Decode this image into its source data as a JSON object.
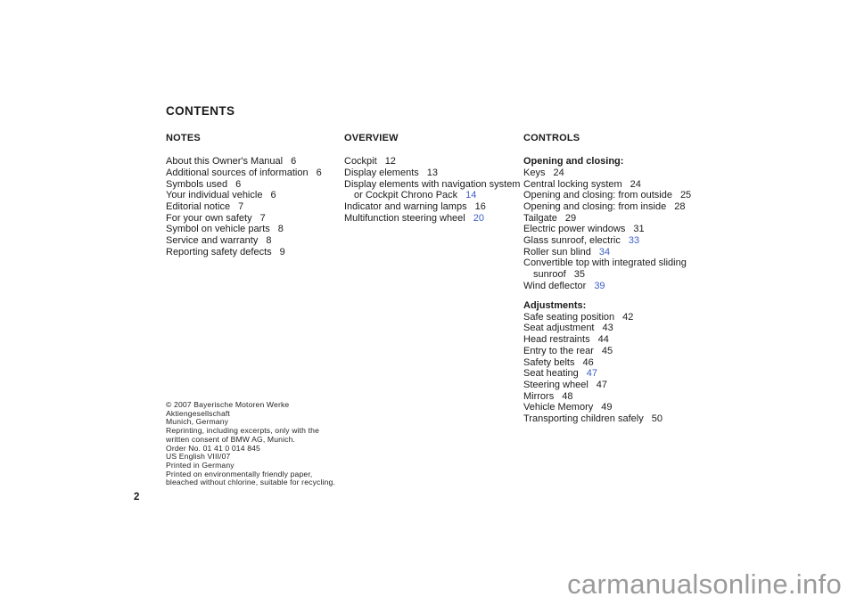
{
  "page": {
    "title": "CONTENTS",
    "page_number": "2",
    "watermark": "carmanualsonline.info"
  },
  "colors": {
    "text": "#1b1b1b",
    "link_blue": "#3e5fc9",
    "watermark_gray": "#9b9b9b"
  },
  "columns": [
    {
      "header": "NOTES",
      "lines": [
        {
          "text": "About this Owner's Manual",
          "page": "6"
        },
        {
          "text": "Additional sources of information",
          "page": "6"
        },
        {
          "text": "Symbols used",
          "page": "6"
        },
        {
          "text": "Your individual vehicle",
          "page": "6"
        },
        {
          "text": "Editorial notice",
          "page": "7"
        },
        {
          "text": "For your own safety",
          "page": "7"
        },
        {
          "text": "Symbol on vehicle parts",
          "page": "8"
        },
        {
          "text": "Service and warranty",
          "page": "8"
        },
        {
          "text": "Reporting safety defects",
          "page": "9"
        }
      ]
    },
    {
      "header": "OVERVIEW",
      "lines": [
        {
          "text": "Cockpit",
          "page": "12"
        },
        {
          "text": "Display elements",
          "page": "13"
        },
        {
          "text": "Display elements with navigation system"
        },
        {
          "text": "or Cockpit Chrono Pack",
          "page": "14",
          "link": true,
          "indent": true
        },
        {
          "text": "Indicator and warning lamps",
          "page": "16"
        },
        {
          "text": "Multifunction steering wheel",
          "page": "20",
          "link": true
        }
      ]
    },
    {
      "header": "CONTROLS",
      "lines": [
        {
          "text": "Opening and closing:",
          "bold": true
        },
        {
          "text": "Keys",
          "page": "24"
        },
        {
          "text": "Central locking system",
          "page": "24"
        },
        {
          "text": "Opening and closing: from outside",
          "page": "25"
        },
        {
          "text": "Opening and closing: from inside",
          "page": "28"
        },
        {
          "text": "Tailgate",
          "page": "29"
        },
        {
          "text": "Electric power windows",
          "page": "31"
        },
        {
          "text": "Glass sunroof, electric",
          "page": "33",
          "link": true
        },
        {
          "text": "Roller sun blind",
          "page": "34",
          "link": true
        },
        {
          "text": "Convertible top with integrated sliding"
        },
        {
          "text": "sunroof",
          "page": "35",
          "indent": true
        },
        {
          "text": "Wind deflector",
          "page": "39",
          "link": true
        },
        {
          "gap": true
        },
        {
          "text": "Adjustments:",
          "bold": true
        },
        {
          "text": "Safe seating position",
          "page": "42"
        },
        {
          "text": "Seat adjustment",
          "page": "43"
        },
        {
          "text": "Head restraints",
          "page": "44"
        },
        {
          "text": "Entry to the rear",
          "page": "45"
        },
        {
          "text": "Safety belts",
          "page": "46"
        },
        {
          "text": "Seat heating",
          "page": "47",
          "link": true
        },
        {
          "text": "Steering wheel",
          "page": "47"
        },
        {
          "text": "Mirrors",
          "page": "48"
        },
        {
          "text": "Vehicle Memory",
          "page": "49"
        },
        {
          "text": "Transporting children safely",
          "page": "50"
        }
      ]
    }
  ],
  "imprint": [
    "© 2007 Bayerische Motoren Werke",
    "Aktiengesellschaft",
    "Munich, Germany",
    "Reprinting, including excerpts, only with the",
    "written consent of BMW AG, Munich.",
    "Order No. 01 41 0 014 845",
    "US English VIII/07",
    "Printed in Germany",
    "Printed on environmentally friendly paper,",
    "bleached without chlorine, suitable for recycling."
  ]
}
